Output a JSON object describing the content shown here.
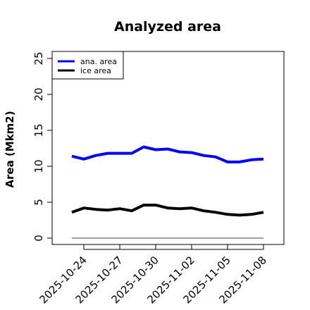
{
  "chart_data": {
    "type": "line",
    "title": "Analyzed area",
    "xlabel": "",
    "ylabel": "Area (Mkm2)",
    "ylim": [
      0,
      26
    ],
    "yticks": [
      0,
      5,
      10,
      15,
      20,
      25
    ],
    "x": [
      "2025-10-23",
      "2025-10-24",
      "2025-10-25",
      "2025-10-26",
      "2025-10-27",
      "2025-10-28",
      "2025-10-29",
      "2025-10-30",
      "2025-10-31",
      "2025-11-01",
      "2025-11-02",
      "2025-11-03",
      "2025-11-04",
      "2025-11-05",
      "2025-11-06",
      "2025-11-07",
      "2025-11-08"
    ],
    "xticks": [
      "2025-10-24",
      "2025-10-27",
      "2025-10-30",
      "2025-11-02",
      "2025-11-05",
      "2025-11-08"
    ],
    "highlight_tick": "2025-10-30",
    "baseline": 0,
    "series": [
      {
        "name": "ana. area",
        "color": "#0000ff",
        "values": [
          11.4,
          11.0,
          11.5,
          11.8,
          11.8,
          11.8,
          12.7,
          12.3,
          12.4,
          12.0,
          11.9,
          11.5,
          11.3,
          10.6,
          10.6,
          10.9,
          11.0
        ]
      },
      {
        "name": "ice area",
        "color": "#000000",
        "values": [
          3.6,
          4.2,
          4.0,
          3.9,
          4.1,
          3.8,
          4.6,
          4.6,
          4.2,
          4.1,
          4.2,
          3.8,
          3.6,
          3.3,
          3.2,
          3.3,
          3.6
        ]
      }
    ],
    "legend_position": "top-left",
    "grid": false,
    "colors": {
      "highlight_tick": "#228b22",
      "baseline": "#808080"
    }
  }
}
